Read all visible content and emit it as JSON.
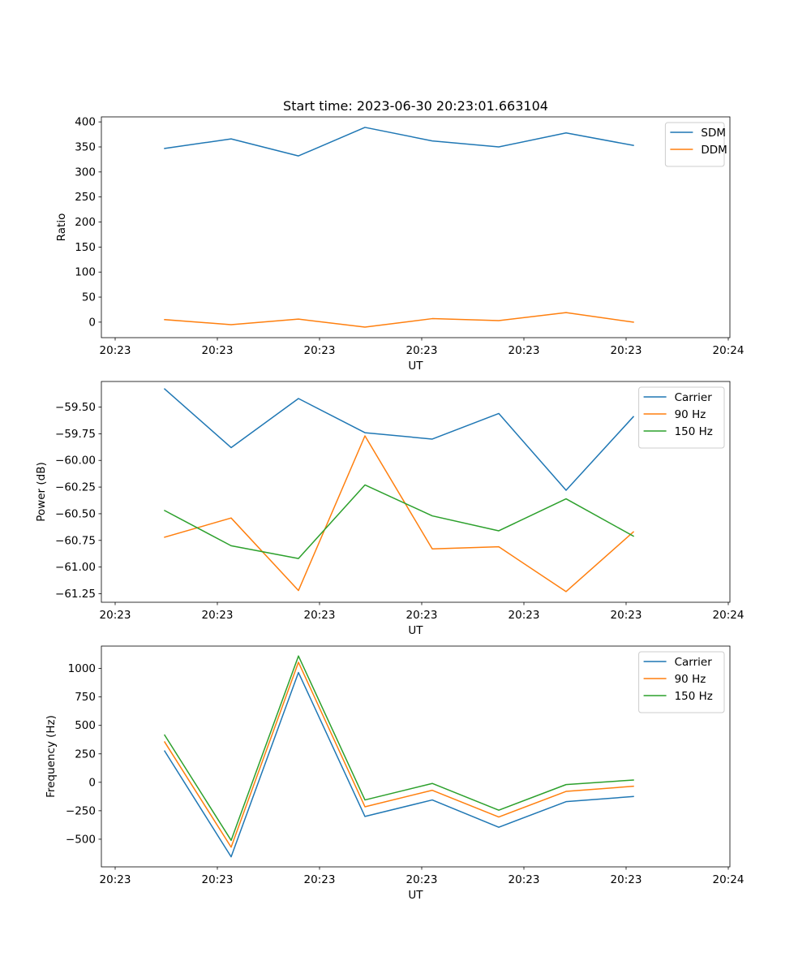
{
  "chart_data": [
    {
      "type": "line",
      "title": "Start time: 2023-06-30 20:23:01.663104",
      "xlabel": "UT",
      "ylabel": "Ratio",
      "x_tick_labels": [
        "20:23",
        "20:23",
        "20:23",
        "20:23",
        "20:23",
        "20:23",
        "20:24"
      ],
      "y_ticks": [
        0,
        50,
        100,
        150,
        200,
        250,
        300,
        350,
        400
      ],
      "ylim": [
        -31,
        410
      ],
      "legend_position": "top-right",
      "series": [
        {
          "name": "SDM",
          "color": "#1f77b4",
          "values": [
            347,
            366,
            332,
            389,
            362,
            350,
            378,
            353
          ]
        },
        {
          "name": "DDM",
          "color": "#ff7f0e",
          "values": [
            5,
            -5,
            6,
            -10,
            7,
            3,
            19,
            0
          ]
        }
      ]
    },
    {
      "type": "line",
      "title": "",
      "xlabel": "UT",
      "ylabel": "Power (dB)",
      "x_tick_labels": [
        "20:23",
        "20:23",
        "20:23",
        "20:23",
        "20:23",
        "20:23",
        "20:24"
      ],
      "y_ticks": [
        -59.5,
        -59.75,
        -60.0,
        -60.25,
        -60.5,
        -60.75,
        -61.0,
        -61.25
      ],
      "y_tick_labels": [
        "−59.50",
        "−59.75",
        "−60.00",
        "−60.25",
        "−60.50",
        "−60.75",
        "−61.00",
        "−61.25"
      ],
      "ylim": [
        -61.33,
        -59.26
      ],
      "legend_position": "top-right",
      "series": [
        {
          "name": "Carrier",
          "color": "#1f77b4",
          "values": [
            -59.33,
            -59.88,
            -59.42,
            -59.74,
            -59.8,
            -59.56,
            -60.28,
            -59.59
          ]
        },
        {
          "name": "90 Hz",
          "color": "#ff7f0e",
          "values": [
            -60.72,
            -60.54,
            -61.22,
            -59.77,
            -60.83,
            -60.81,
            -61.23,
            -60.67
          ]
        },
        {
          "name": "150 Hz",
          "color": "#2ca02c",
          "values": [
            -60.47,
            -60.8,
            -60.92,
            -60.23,
            -60.52,
            -60.66,
            -60.36,
            -60.71
          ]
        }
      ]
    },
    {
      "type": "line",
      "title": "",
      "xlabel": "UT",
      "ylabel": "Frequency (Hz)",
      "x_tick_labels": [
        "20:23",
        "20:23",
        "20:23",
        "20:23",
        "20:23",
        "20:23",
        "20:24"
      ],
      "y_ticks": [
        -500,
        -250,
        0,
        250,
        500,
        750,
        1000
      ],
      "y_tick_labels": [
        "−500",
        "−250",
        "0",
        "250",
        "500",
        "750",
        "1000"
      ],
      "ylim": [
        -743,
        1197
      ],
      "legend_position": "top-right",
      "series": [
        {
          "name": "Carrier",
          "color": "#1f77b4",
          "values": [
            275,
            -655,
            965,
            -300,
            -155,
            -395,
            -170,
            -125
          ]
        },
        {
          "name": "90 Hz",
          "color": "#ff7f0e",
          "values": [
            355,
            -570,
            1055,
            -215,
            -70,
            -305,
            -80,
            -35
          ]
        },
        {
          "name": "150 Hz",
          "color": "#2ca02c",
          "values": [
            415,
            -510,
            1110,
            -155,
            -10,
            -245,
            -20,
            20
          ]
        }
      ]
    }
  ]
}
